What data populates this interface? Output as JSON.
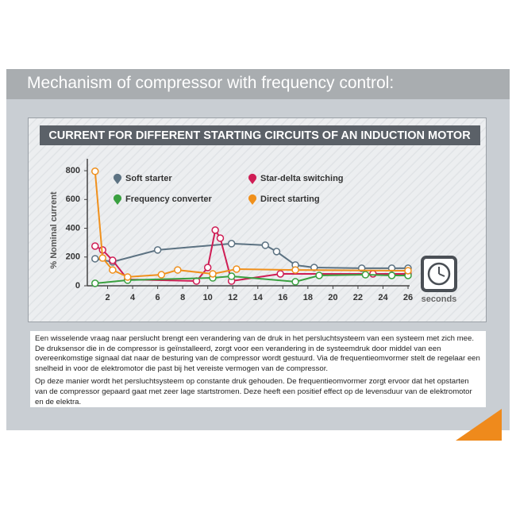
{
  "slide_title": "Mechanism of compressor with frequency control:",
  "chart_data": {
    "type": "line",
    "title": "CURRENT FOR DIFFERENT STARTING CIRCUITS OF AN INDUCTION MOTOR",
    "y_label": "% Nominal current",
    "x_label": "seconds",
    "xlim": [
      0,
      26
    ],
    "xticks": [
      2,
      4,
      6,
      8,
      10,
      12,
      14,
      16,
      18,
      20,
      22,
      24,
      26
    ],
    "ylim": [
      0,
      850
    ],
    "yticks": [
      0,
      200,
      400,
      600,
      800
    ],
    "series": [
      {
        "name": "Soft starter",
        "color": "#5c7282",
        "x": [
          1,
          2.4,
          6,
          11.9,
          14.6,
          15.5,
          17,
          18.5,
          22.3,
          24.7,
          26
        ],
        "values": [
          188,
          166,
          249,
          293,
          282,
          238,
          144,
          127,
          122,
          122,
          122
        ]
      },
      {
        "name": "Star-delta switching",
        "color": "#cf1d55",
        "x": [
          1,
          1.6,
          2.4,
          3.6,
          9.1,
          10,
          10.6,
          11,
          11.9,
          15.8,
          23.2,
          26
        ],
        "values": [
          276,
          249,
          177,
          44,
          33,
          127,
          387,
          331,
          33,
          83,
          83,
          83
        ]
      },
      {
        "name": "Frequency converter",
        "color": "#3aa040",
        "x": [
          1,
          3.6,
          10.4,
          11.9,
          17,
          18.9,
          22.6,
          24.7,
          26
        ],
        "values": [
          17,
          39,
          55,
          66,
          28,
          72,
          77,
          72,
          72
        ]
      },
      {
        "name": "Direct starting",
        "color": "#f0901c",
        "x": [
          1,
          1.6,
          2.4,
          3.6,
          6.3,
          7.6,
          10.4,
          12.3,
          17,
          26
        ],
        "values": [
          796,
          193,
          110,
          61,
          77,
          110,
          83,
          116,
          110,
          105
        ]
      }
    ]
  },
  "paragraphs": [
    "Een wisselende vraag naar perslucht brengt een verandering van de druk in het persluchtsysteem van een systeem met zich mee. De druksensor die in de compressor is geïnstalleerd, zorgt voor een verandering in de systeemdruk door middel van een overeenkomstige signaal dat naar de besturing van de compressor wordt gestuurd. Via de frequentieomvormer stelt de regelaar een snelheid in voor de elektromotor die past bij het vereiste vermogen van de compressor.",
    "Op deze manier wordt het persluchtsysteem op constante druk gehouden. De frequentieomvormer zorgt ervoor dat het opstarten van de compressor gepaard gaat met zeer lage startstromen. Deze heeft een positief effect op de levensduur van de elektromotor en de elektra."
  ]
}
